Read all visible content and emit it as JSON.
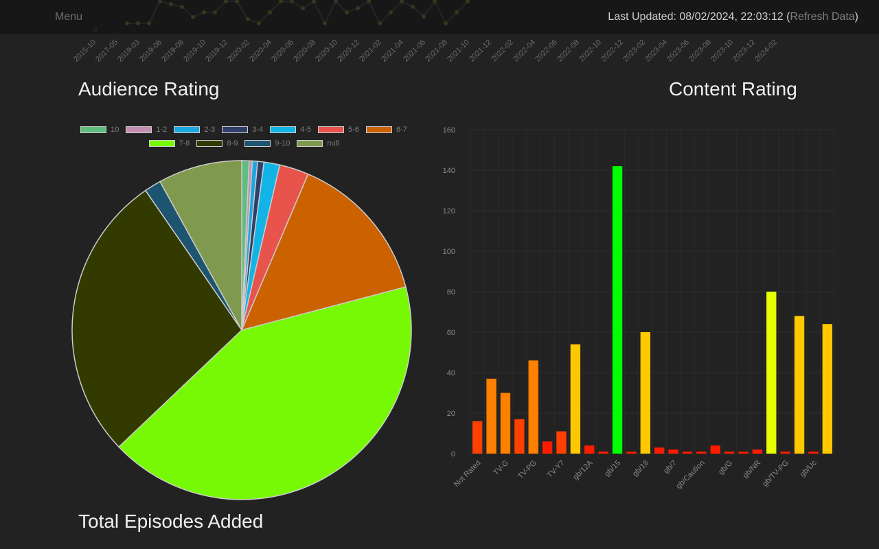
{
  "header": {
    "menu_label": "Menu",
    "last_updated_prefix": "Last Updated: ",
    "last_updated_value": "08/02/2024, 22:03:12",
    "refresh_open": " (",
    "refresh_label": "Refresh Data",
    "refresh_close": ")"
  },
  "titles": {
    "audience": "Audience Rating",
    "content": "Content Rating",
    "episodes": "Total Episodes Added"
  },
  "chart_data": [
    {
      "type": "line",
      "ylim_min_label": "0",
      "categories": [
        "2015-10",
        "2017-05",
        "2019-03",
        "2019-06",
        "2019-08",
        "2019-10",
        "2019-12",
        "2020-02",
        "2020-04",
        "2020-06",
        "2020-08",
        "2020-10",
        "2020-12",
        "2021-02",
        "2021-04",
        "2021-06",
        "2021-08",
        "2021-10",
        "2021-12",
        "2022-02",
        "2022-04",
        "2022-06",
        "2022-08",
        "2022-10",
        "2022-12",
        "2023-02",
        "2023-04",
        "2023-06",
        "2023-08",
        "2023-10",
        "2023-12",
        "2024-02"
      ],
      "line_color": "#808080",
      "point_color": "#a39a3d"
    },
    {
      "type": "pie",
      "legend_position": "top",
      "labels": [
        "10",
        "1-2",
        "2-3",
        "3-4",
        "4-5",
        "5-6",
        "6-7",
        "7-8",
        "8-9",
        "9-10",
        "null"
      ],
      "colors": [
        "#5fbe7e",
        "#c48fb1",
        "#1ba8e0",
        "#2f3f6a",
        "#12b4e6",
        "#e8534b",
        "#cc6100",
        "#77f905",
        "#333a00",
        "#1d5570",
        "#7f9a4e"
      ],
      "values": [
        0.7,
        0.3,
        0.5,
        0.6,
        1.5,
        2.8,
        14.5,
        42.0,
        27.5,
        1.6,
        8.0
      ]
    },
    {
      "type": "bar",
      "categories": [
        "Not Rated",
        "",
        "TV-G",
        "",
        "TV-PG",
        "",
        "TV-Y7",
        "",
        "gb/12A",
        "",
        "gb/15",
        "",
        "gb/18",
        "",
        "gb/7",
        "",
        "gb/Caution",
        "",
        "gb/G",
        "",
        "gb/NR",
        "",
        "gb/TV-PG",
        "",
        "gb/Uc",
        ""
      ],
      "values": [
        16,
        37,
        30,
        17,
        46,
        6,
        11,
        54,
        4,
        1,
        142,
        1,
        60,
        3,
        2,
        1,
        1,
        4,
        1,
        1,
        2,
        80,
        1,
        68,
        1,
        64
      ],
      "ylim": [
        0,
        160
      ],
      "yticks": [
        0,
        20,
        40,
        60,
        80,
        100,
        120,
        140,
        160
      ],
      "grid": true,
      "color_stops": [
        "#ff1a00",
        "#ff8000",
        "#ffc800",
        "#e6ff00",
        "#00ff00"
      ]
    }
  ]
}
